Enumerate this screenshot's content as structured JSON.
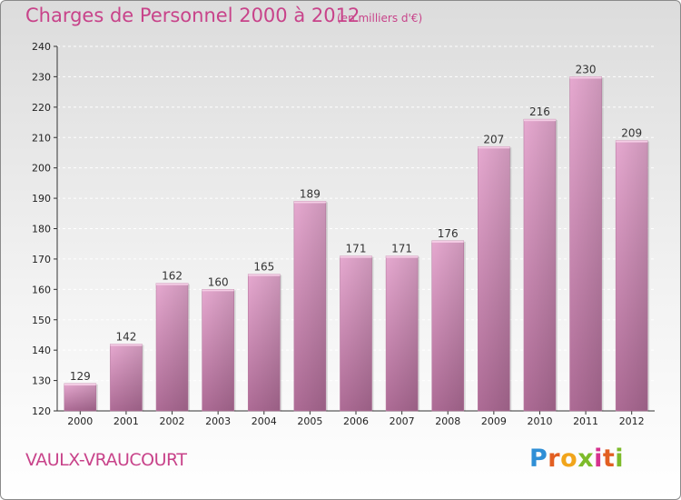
{
  "title": "Charges de Personnel 2000 à 2012",
  "subtitle": "(en milliers d'€)",
  "place": "VAULX-VRAUCOURT",
  "logo_text": "Proxiti",
  "colors": {
    "accent": "#c8438a",
    "bar_top": "#e6a9d0",
    "bar_bottom": "#ad6b95"
  },
  "chart_data": {
    "type": "bar",
    "title": "Charges de Personnel 2000 à 2012",
    "subtitle": "(en milliers d'€)",
    "categories": [
      "2000",
      "2001",
      "2002",
      "2003",
      "2004",
      "2005",
      "2006",
      "2007",
      "2008",
      "2009",
      "2010",
      "2011",
      "2012"
    ],
    "values": [
      129,
      142,
      162,
      160,
      165,
      189,
      171,
      171,
      176,
      207,
      216,
      230,
      209
    ],
    "xlabel": "",
    "ylabel": "",
    "ylim": [
      120,
      240
    ],
    "yticks": [
      120,
      130,
      140,
      150,
      160,
      170,
      180,
      190,
      200,
      210,
      220,
      230,
      240
    ],
    "grid": true,
    "legend": "none"
  }
}
